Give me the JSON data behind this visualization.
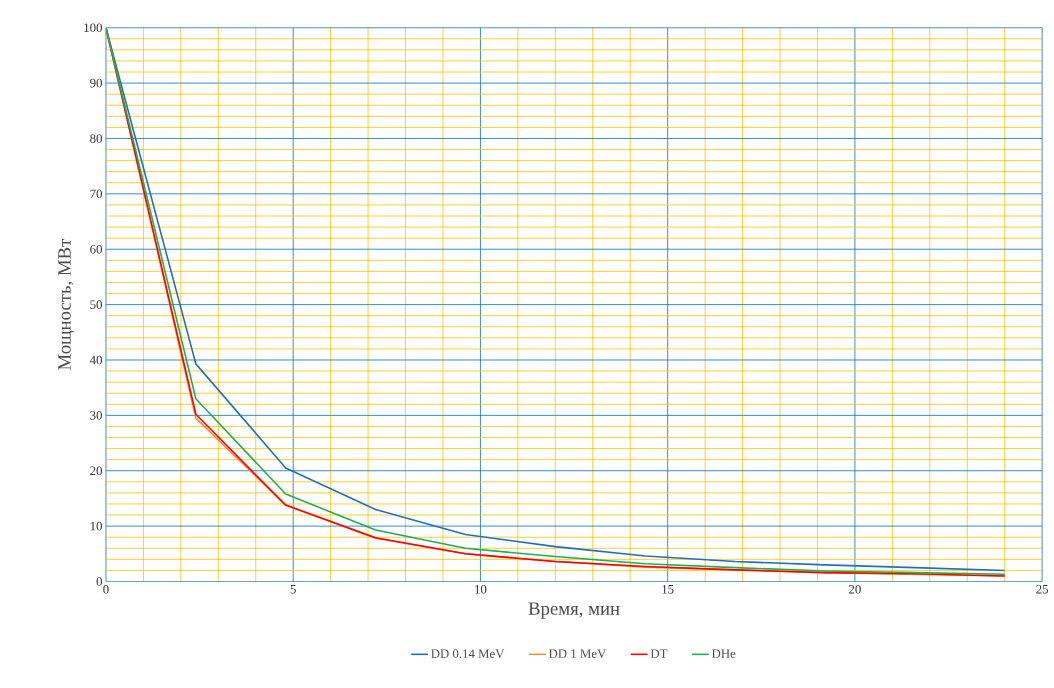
{
  "chart_data": {
    "type": "line",
    "xlabel": "Время, мин",
    "ylabel": "Мощность, МВт",
    "x": [
      0,
      2.4,
      4.8,
      7.2,
      9.6,
      12,
      14.4,
      16.8,
      19.2,
      21.6,
      24
    ],
    "series": [
      {
        "name": "DD 0.14 MeV",
        "color": "#1f6fc0",
        "values": [
          100,
          39.3,
          20.5,
          13,
          8.5,
          6.3,
          4.6,
          3.6,
          3.0,
          2.5,
          2.0
        ]
      },
      {
        "name": "DD 1 MeV",
        "color": "#f28a40",
        "values": [
          100,
          29.5,
          13.8,
          7.8,
          5.0,
          3.6,
          2.6,
          2.1,
          1.6,
          1.3,
          1.0
        ]
      },
      {
        "name": "DT",
        "color": "#ff0000",
        "values": [
          100,
          30.2,
          13.8,
          7.9,
          5.0,
          3.6,
          2.7,
          2.1,
          1.6,
          1.4,
          1.0
        ]
      },
      {
        "name": "DHe",
        "color": "#1faf50",
        "values": [
          100,
          33,
          15.8,
          9.3,
          6.0,
          4.5,
          3.2,
          2.5,
          1.9,
          1.6,
          1.3
        ]
      }
    ],
    "xlim": [
      0,
      25
    ],
    "ylim": [
      0,
      100
    ],
    "xticks": [
      0,
      {
        "value": 1,
        "label": null
      },
      {
        "value": 2,
        "label": null
      },
      {
        "value": 3,
        "label": null
      },
      {
        "value": 4,
        "label": null
      },
      5,
      {
        "value": 6,
        "label": null
      },
      {
        "value": 7,
        "label": null
      },
      {
        "value": 8,
        "label": null
      },
      {
        "value": 9,
        "label": null
      },
      10,
      {
        "value": 11,
        "label": null
      },
      {
        "value": 12,
        "label": null
      },
      {
        "value": 13,
        "label": null
      },
      {
        "value": 14,
        "label": null
      },
      15,
      {
        "value": 16,
        "label": null
      },
      {
        "value": 17,
        "label": null
      },
      {
        "value": 18,
        "label": null
      },
      {
        "value": 19,
        "label": null
      },
      20,
      {
        "value": 21,
        "label": null
      },
      {
        "value": 22,
        "label": null
      },
      {
        "value": 23,
        "label": null
      },
      {
        "value": 24,
        "label": null
      },
      25
    ],
    "yticks": [
      0,
      {
        "value": 2,
        "label": null
      },
      {
        "value": 4,
        "label": null
      },
      {
        "value": 6,
        "label": null
      },
      {
        "value": 8,
        "label": null
      },
      10,
      {
        "value": 12,
        "label": null
      },
      {
        "value": 14,
        "label": null
      },
      {
        "value": 16,
        "label": null
      },
      {
        "value": 18,
        "label": null
      },
      20,
      {
        "value": 22,
        "label": null
      },
      {
        "value": 24,
        "label": null
      },
      {
        "value": 26,
        "label": null
      },
      {
        "value": 28,
        "label": null
      },
      30,
      {
        "value": 32,
        "label": null
      },
      {
        "value": 34,
        "label": null
      },
      {
        "value": 36,
        "label": null
      },
      {
        "value": 38,
        "label": null
      },
      40,
      {
        "value": 42,
        "label": null
      },
      {
        "value": 44,
        "label": null
      },
      {
        "value": 46,
        "label": null
      },
      {
        "value": 48,
        "label": null
      },
      50,
      {
        "value": 52,
        "label": null
      },
      {
        "value": 54,
        "label": null
      },
      {
        "value": 56,
        "label": null
      },
      {
        "value": 58,
        "label": null
      },
      60,
      {
        "value": 62,
        "label": null
      },
      {
        "value": 64,
        "label": null
      },
      {
        "value": 66,
        "label": null
      },
      {
        "value": 68,
        "label": null
      },
      70,
      {
        "value": 72,
        "label": null
      },
      {
        "value": 74,
        "label": null
      },
      {
        "value": 76,
        "label": null
      },
      {
        "value": 78,
        "label": null
      },
      80,
      {
        "value": 82,
        "label": null
      },
      {
        "value": 84,
        "label": null
      },
      {
        "value": 86,
        "label": null
      },
      {
        "value": 88,
        "label": null
      },
      90,
      {
        "value": 92,
        "label": null
      },
      {
        "value": 94,
        "label": null
      },
      {
        "value": 96,
        "label": null
      },
      {
        "value": 98,
        "label": null
      },
      100
    ],
    "grid": true,
    "legend": "bottom",
    "marker": "none",
    "line_style": "solid"
  }
}
